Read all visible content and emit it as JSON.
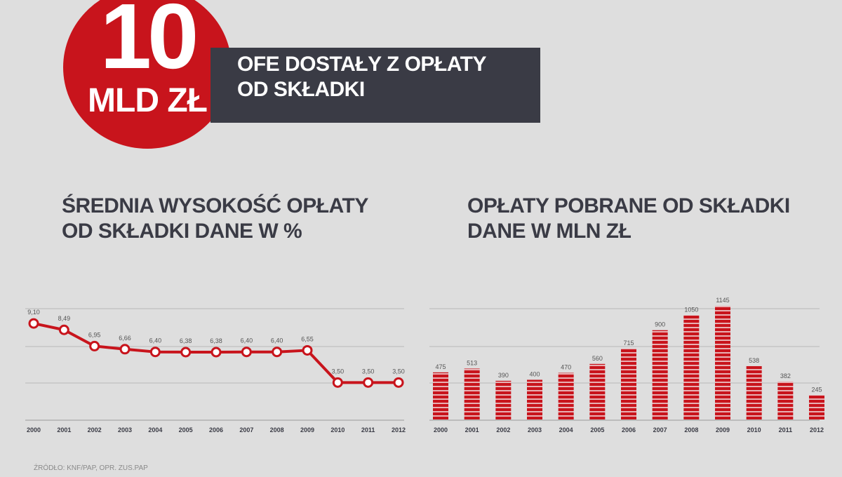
{
  "header": {
    "big_number": "10",
    "big_unit": "MLD ZŁ",
    "banner_line1": "OFE DOSTAŁY Z OPŁATY",
    "banner_line2": "OD SKŁADKI"
  },
  "colors": {
    "red": "#c8141c",
    "dark": "#3a3b45",
    "background": "#dedede"
  },
  "left_chart": {
    "title_line1": "ŚREDNIA WYSOKOŚĆ OPŁATY",
    "title_line2": "OD SKŁADKI DANE W %"
  },
  "right_chart": {
    "title_line1": "OPŁATY POBRANE OD SKŁADKI",
    "title_line2": "DANE W MLN ZŁ"
  },
  "source": "ŹRÓDŁO: KNF/PAP, OPR. ZUS.PAP",
  "chart_data": [
    {
      "type": "line",
      "title": "ŚREDNIA WYSOKOŚĆ OPŁATY OD SKŁADKI DANE W %",
      "x": [
        "2000",
        "2001",
        "2002",
        "2003",
        "2004",
        "2005",
        "2006",
        "2007",
        "2008",
        "2009",
        "2010",
        "2011",
        "2012"
      ],
      "series": [
        {
          "values": [
            9.1,
            8.49,
            6.95,
            6.66,
            6.4,
            6.38,
            6.38,
            6.4,
            6.4,
            6.55,
            3.5,
            3.5,
            3.5
          ],
          "labels": [
            "9,10",
            "8,49",
            "6,95",
            "6,66",
            "6,40",
            "6,38",
            "6,38",
            "6,40",
            "6,40",
            "6,55",
            "3,50",
            "3,50",
            "3,50"
          ]
        }
      ],
      "ylim": [
        0,
        10.5
      ],
      "grid": true
    },
    {
      "type": "bar",
      "title": "OPŁATY POBRANE OD SKŁADKI DANE W MLN ZŁ",
      "categories": [
        "2000",
        "2001",
        "2002",
        "2003",
        "2004",
        "2005",
        "2006",
        "2007",
        "2008",
        "2009",
        "2010",
        "2011",
        "2012"
      ],
      "values": [
        475,
        513,
        390,
        400,
        470,
        560,
        715,
        900,
        1050,
        1145,
        538,
        382,
        245
      ],
      "labels": [
        "475",
        "513",
        "390",
        "400",
        "470",
        "560",
        "715",
        "900",
        "1050",
        "1145",
        "538",
        "382",
        "245"
      ],
      "ylim": [
        0,
        1400
      ],
      "grid": true
    }
  ]
}
